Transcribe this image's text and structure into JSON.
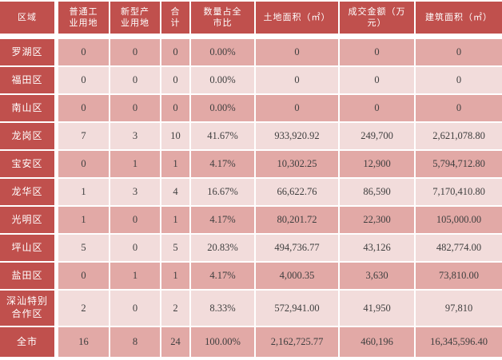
{
  "colors": {
    "header_bg": "#C0504D",
    "row_dark": "#E2A9A6",
    "row_light": "#F2DCDB",
    "gridline": "#FFFFFF",
    "header_text": "#FFFFFF",
    "cell_text": "#3F3F3F"
  },
  "table": {
    "columns": [
      "区域",
      "普通工\n业用地",
      "新型产\n业用地",
      "合\n计",
      "数量占全\n市比",
      "土地面积（㎡）",
      "成交金额（万\n元）",
      "建筑面积（㎡）"
    ],
    "rows": [
      {
        "region": "罗湖区",
        "values": [
          "0",
          "0",
          "0",
          "0.00%",
          "0",
          "0",
          "0"
        ]
      },
      {
        "region": "福田区",
        "values": [
          "0",
          "0",
          "0",
          "0.00%",
          "0",
          "0",
          "0"
        ]
      },
      {
        "region": "南山区",
        "values": [
          "0",
          "0",
          "0",
          "0.00%",
          "0",
          "0",
          "0"
        ]
      },
      {
        "region": "龙岗区",
        "values": [
          "7",
          "3",
          "10",
          "41.67%",
          "933,920.92",
          "249,700",
          "2,621,078.80"
        ]
      },
      {
        "region": "宝安区",
        "values": [
          "0",
          "1",
          "1",
          "4.17%",
          "10,302.25",
          "12,900",
          "5,794,712.80"
        ]
      },
      {
        "region": "龙华区",
        "values": [
          "1",
          "3",
          "4",
          "16.67%",
          "66,622.76",
          "86,590",
          "7,170,410.80"
        ]
      },
      {
        "region": "光明区",
        "values": [
          "1",
          "0",
          "1",
          "4.17%",
          "80,201.72",
          "22,300",
          "105,000.00"
        ]
      },
      {
        "region": "坪山区",
        "values": [
          "5",
          "0",
          "5",
          "20.83%",
          "494,736.77",
          "43,126",
          "482,774.00"
        ]
      },
      {
        "region": "盐田区",
        "values": [
          "0",
          "1",
          "1",
          "4.17%",
          "4,000.35",
          "3,630",
          "73,810.00"
        ]
      },
      {
        "region": "深汕特别\n合作区",
        "values": [
          "2",
          "0",
          "2",
          "8.33%",
          "572,941.00",
          "41,950",
          "97,810"
        ]
      },
      {
        "region": "全市",
        "values": [
          "16",
          "8",
          "24",
          "100.00%",
          "2,162,725.77",
          "460,196",
          "16,345,596.40"
        ]
      }
    ]
  },
  "chart_data": {
    "type": "table",
    "title": "",
    "columns": [
      "区域",
      "普通工业用地",
      "新型产业用地",
      "合计",
      "数量占全市比",
      "土地面积（㎡）",
      "成交金额（万元）",
      "建筑面积（㎡）"
    ],
    "rows": [
      [
        "罗湖区",
        0,
        0,
        0,
        "0.00%",
        0,
        0,
        0
      ],
      [
        "福田区",
        0,
        0,
        0,
        "0.00%",
        0,
        0,
        0
      ],
      [
        "南山区",
        0,
        0,
        0,
        "0.00%",
        0,
        0,
        0
      ],
      [
        "龙岗区",
        7,
        3,
        10,
        "41.67%",
        933920.92,
        249700,
        2621078.8
      ],
      [
        "宝安区",
        0,
        1,
        1,
        "4.17%",
        10302.25,
        12900,
        5794712.8
      ],
      [
        "龙华区",
        1,
        3,
        4,
        "16.67%",
        66622.76,
        86590,
        7170410.8
      ],
      [
        "光明区",
        1,
        0,
        1,
        "4.17%",
        80201.72,
        22300,
        105000.0
      ],
      [
        "坪山区",
        5,
        0,
        5,
        "20.83%",
        494736.77,
        43126,
        482774.0
      ],
      [
        "盐田区",
        0,
        1,
        1,
        "4.17%",
        4000.35,
        3630,
        73810.0
      ],
      [
        "深汕特别合作区",
        2,
        0,
        2,
        "8.33%",
        572941.0,
        41950,
        97810
      ],
      [
        "全市",
        16,
        8,
        24,
        "100.00%",
        2162725.77,
        460196,
        16345596.4
      ]
    ]
  }
}
